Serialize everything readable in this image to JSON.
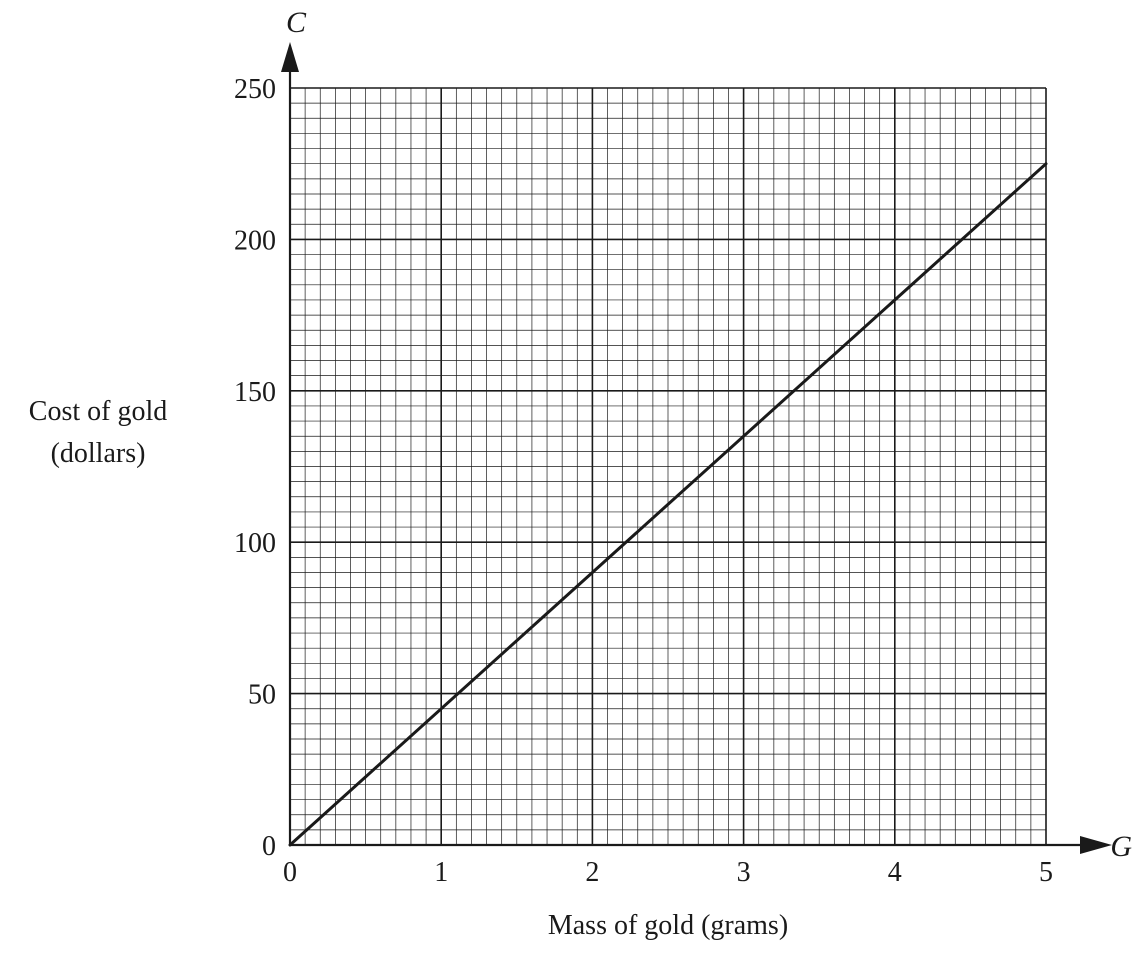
{
  "chart_data": {
    "type": "line",
    "title": "",
    "xlabel": "Mass of gold (grams)",
    "ylabel_lines": [
      "Cost of gold",
      "(dollars)"
    ],
    "x_variable": "G",
    "y_variable": "C",
    "xlim": [
      0,
      5
    ],
    "ylim": [
      0,
      250
    ],
    "x_ticks": [
      "0",
      "1",
      "2",
      "3",
      "4",
      "5"
    ],
    "y_ticks": [
      "0",
      "50",
      "100",
      "150",
      "200",
      "250"
    ],
    "grid": true,
    "grid_minor_x_per_unit": 10,
    "grid_minor_y_per_50": 10,
    "legend": "none",
    "series": [
      {
        "color": "#1a1a1a",
        "x": [
          0,
          5
        ],
        "y": [
          0,
          225
        ]
      }
    ]
  }
}
